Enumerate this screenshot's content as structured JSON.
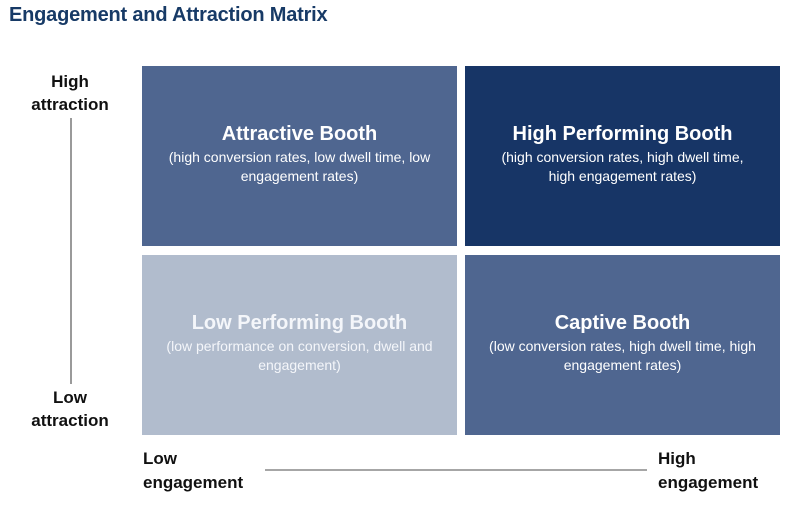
{
  "title": "Engagement and Attraction Matrix",
  "axes": {
    "y_high": "High attraction",
    "y_low": "Low attraction",
    "x_low": "Low engagement",
    "x_high": "High engagement"
  },
  "quadrants": [
    {
      "title": "Attractive Booth",
      "description": "(high conversion rates, low dwell time, low engagement rates)",
      "color": "#4f6690"
    },
    {
      "title": "High Performing Booth",
      "description": "(high conversion rates, high dwell time, high engagement rates)",
      "color": "#173566"
    },
    {
      "title": "Low Performing Booth",
      "description": "(low performance on conversion, dwell and engagement)",
      "color": "#b1bccd"
    },
    {
      "title": "Captive Booth",
      "description": "(low conversion rates, high dwell time, high engagement rates)",
      "color": "#4f6690"
    }
  ]
}
